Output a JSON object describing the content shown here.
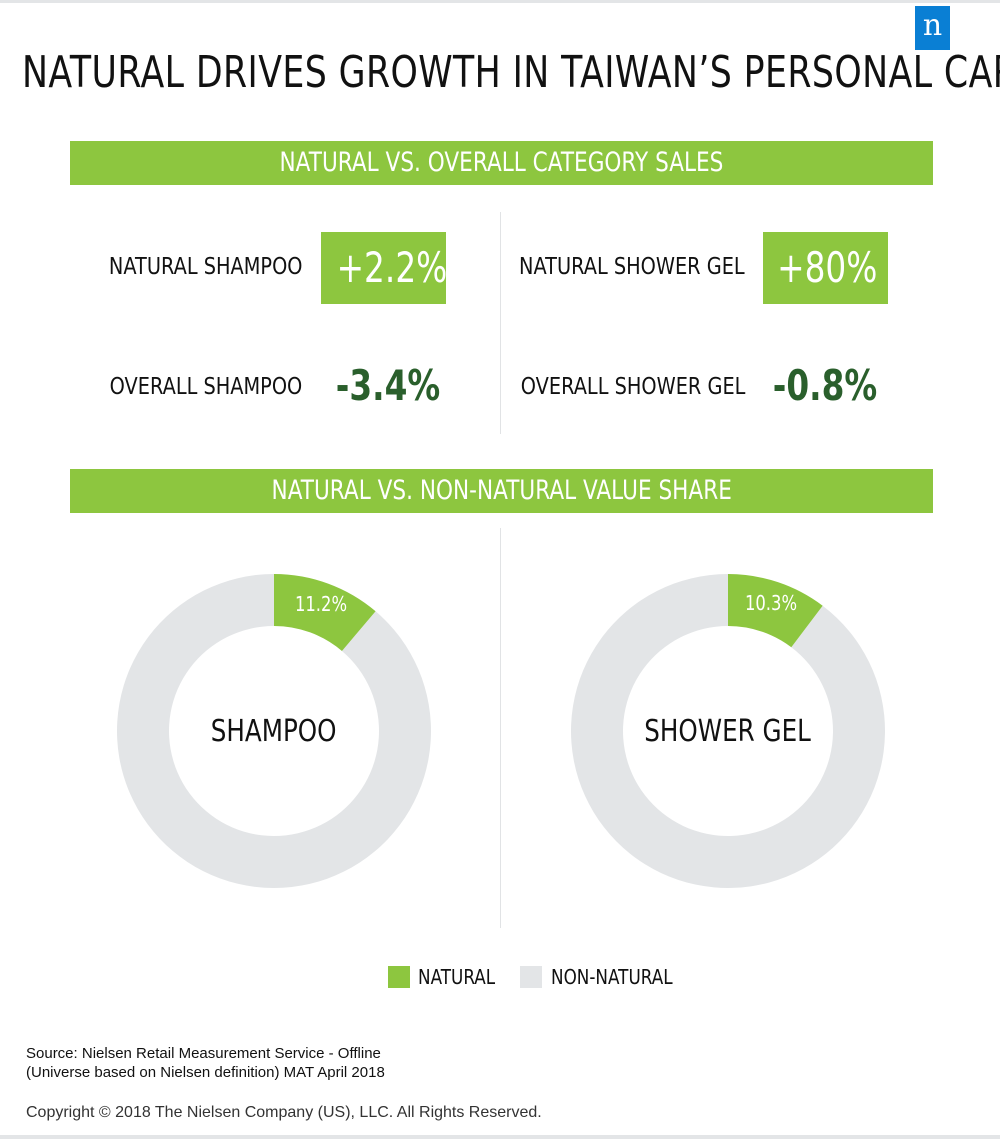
{
  "brand": {
    "logo_letter": "n",
    "logo_color": "#0a7fd4"
  },
  "title": "NATURAL DRIVES GROWTH IN TAIWAN’S PERSONAL CARE",
  "colors": {
    "green": "#8dc63f",
    "dark_green": "#2a5f2c",
    "gray": "#e3e5e7"
  },
  "sales_section": {
    "title": "NATURAL VS. OVERALL CATEGORY SALES",
    "natural_shampoo": {
      "label": "NATURAL SHAMPOO",
      "value": "+2.2%"
    },
    "overall_shampoo": {
      "label": "OVERALL SHAMPOO",
      "value": "-3.4%"
    },
    "natural_shower_gel": {
      "label": "NATURAL SHOWER GEL",
      "value": "+80%"
    },
    "overall_shower_gel": {
      "label": "OVERALL SHOWER GEL",
      "value": "-0.8%"
    }
  },
  "share_section": {
    "title": "NATURAL VS. NON-NATURAL VALUE SHARE"
  },
  "chart_data": [
    {
      "type": "pie",
      "title": "SHAMPOO",
      "categories": [
        "NATURAL",
        "NON-NATURAL"
      ],
      "values": [
        11.2,
        88.8
      ],
      "data_labels": [
        "11.2%",
        ""
      ],
      "legend": "bottom"
    },
    {
      "type": "pie",
      "title": "SHOWER GEL",
      "categories": [
        "NATURAL",
        "NON-NATURAL"
      ],
      "values": [
        10.3,
        89.7
      ],
      "data_labels": [
        "10.3%",
        ""
      ],
      "legend": "bottom"
    }
  ],
  "legend": [
    {
      "label": "NATURAL",
      "color": "#8dc63f"
    },
    {
      "label": "NON-NATURAL",
      "color": "#e3e5e7"
    }
  ],
  "source": {
    "line1": "Source: Nielsen Retail Measurement Service - Offline",
    "line2": "(Universe based on Nielsen definition) MAT April 2018"
  },
  "copyright": "Copyright © 2018 The Nielsen Company (US), LLC. All Rights Reserved."
}
